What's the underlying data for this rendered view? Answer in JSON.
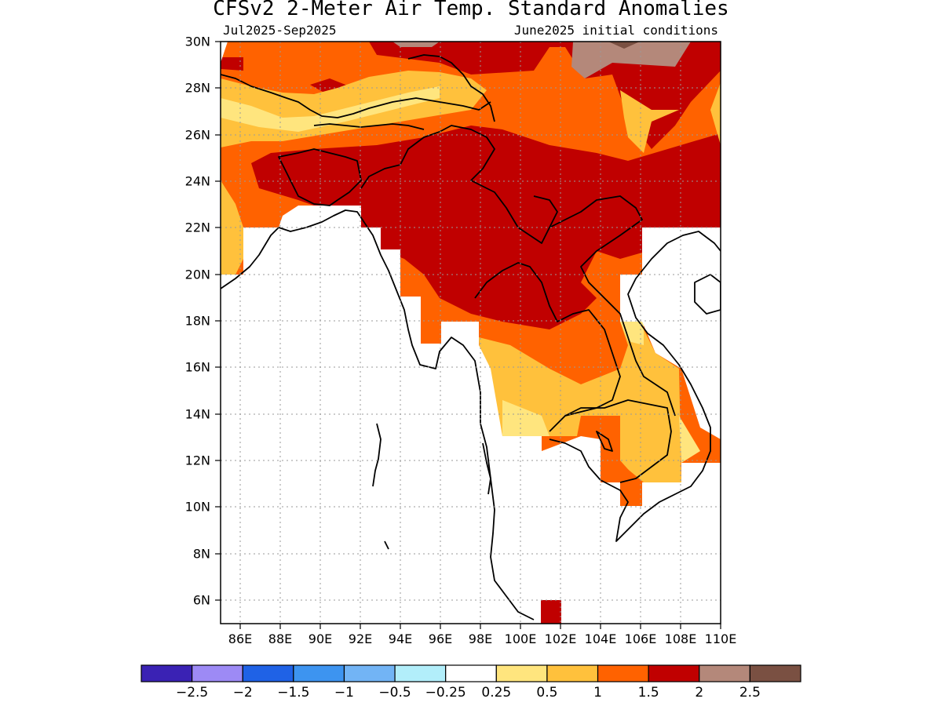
{
  "title": "CFSv2 2-Meter Air Temp. Standard Anomalies",
  "period": "Jul2025-Sep2025",
  "init": "June2025 initial conditions",
  "lat_labels": [
    "30N",
    "28N",
    "26N",
    "24N",
    "22N",
    "20N",
    "18N",
    "16N",
    "14N",
    "12N",
    "10N",
    "8N",
    "6N"
  ],
  "lon_labels": [
    "86E",
    "88E",
    "90E",
    "92E",
    "94E",
    "96E",
    "98E",
    "100E",
    "102E",
    "104E",
    "106E",
    "108E",
    "110E"
  ],
  "colorbar": {
    "colors": [
      "#3a22b4",
      "#9d8af5",
      "#1f62e6",
      "#3d94f0",
      "#72b4f5",
      "#b2eefa",
      "#ffffff",
      "#ffe57e",
      "#ffc13c",
      "#ff6200",
      "#c00000",
      "#b4887a",
      "#7a5042"
    ],
    "labels": [
      "-2.5",
      "-2",
      "-1.5",
      "-1",
      "-0.5",
      "-0.25",
      "0.25",
      "0.5",
      "1",
      "1.5",
      "2",
      "2.5"
    ]
  }
}
